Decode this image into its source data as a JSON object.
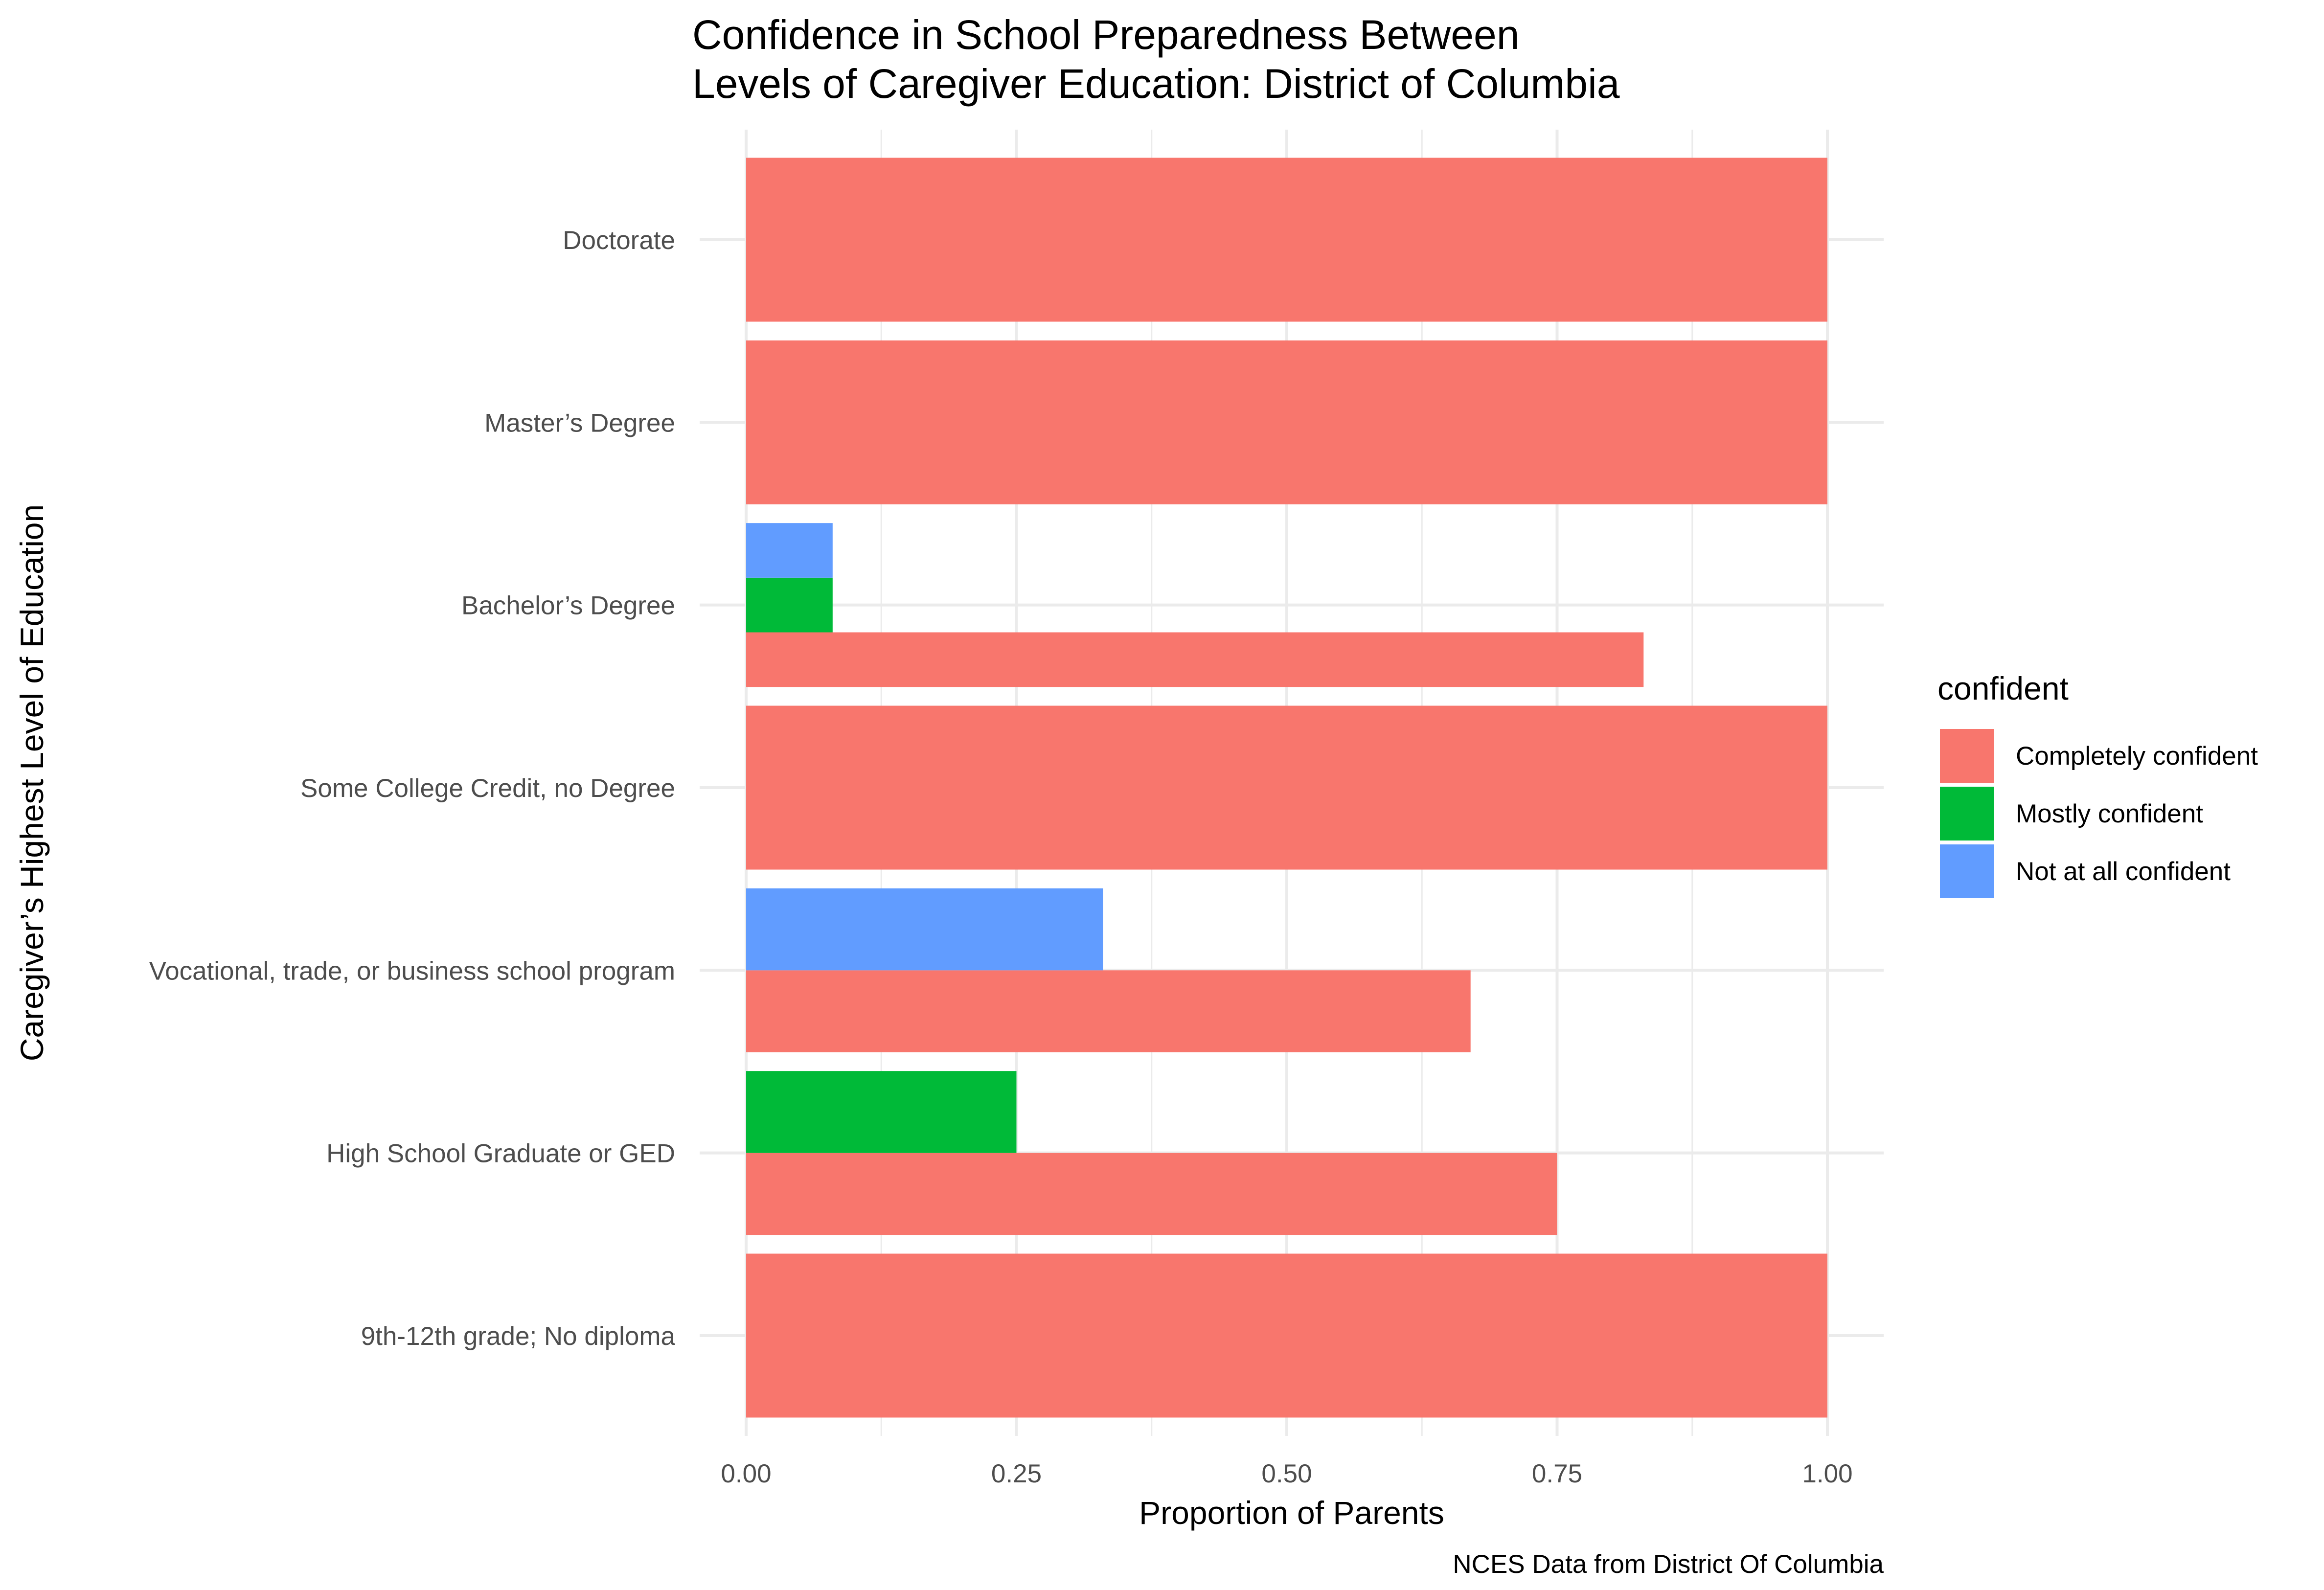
{
  "chart_data": {
    "type": "bar",
    "orientation": "horizontal",
    "position": "dodge",
    "title_lines": [
      "Confidence in School Preparedness Between",
      "Levels of Caregiver Education: District of Columbia"
    ],
    "xlabel": "Proportion of Parents",
    "ylabel": "Caregiver’s Highest Level of Education",
    "caption": "NCES Data from District Of Columbia",
    "xlim": [
      0,
      1.05
    ],
    "x_ticks": [
      0,
      0.25,
      0.5,
      0.75,
      1.0
    ],
    "x_tick_labels": [
      "0.00",
      "0.25",
      "0.50",
      "0.75",
      "1.00"
    ],
    "grid": true,
    "legend": {
      "title": "confident",
      "placement": "right"
    },
    "categories": [
      "Doctorate",
      "Master’s Degree",
      "Bachelor’s Degree",
      "Some College Credit, no Degree",
      "Vocational, trade, or business school program",
      "High School Graduate or GED",
      "9th-12th grade; No diploma"
    ],
    "series": [
      {
        "name": "Completely confident",
        "color": "#F8766D",
        "values": [
          1.0,
          1.0,
          0.83,
          1.0,
          0.67,
          0.75,
          1.0
        ]
      },
      {
        "name": "Mostly confident",
        "color": "#00BA38",
        "values": [
          null,
          null,
          0.08,
          null,
          null,
          0.25,
          null
        ]
      },
      {
        "name": "Not at all confident",
        "color": "#619CFF",
        "values": [
          null,
          null,
          0.08,
          null,
          0.33,
          null,
          null
        ]
      }
    ]
  }
}
